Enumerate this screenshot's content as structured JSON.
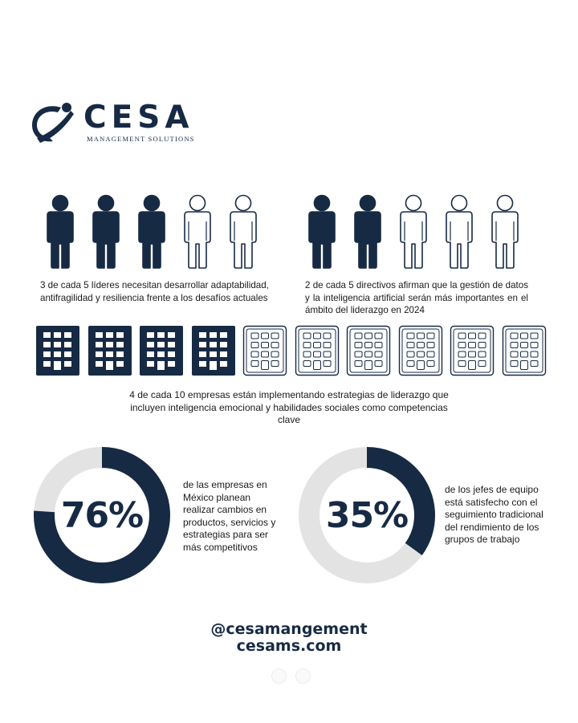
{
  "logo": {
    "name": "CESA",
    "tagline": "Management Solutions"
  },
  "stats": {
    "leaders": {
      "filled": 3,
      "total": 5,
      "text": "3 de cada 5 líderes necesitan desarrollar adaptabilidad, antifragilidad y resiliencia frente a los desafíos actuales"
    },
    "directors": {
      "filled": 2,
      "total": 5,
      "text": "2 de cada 5 directivos afirman que la gestión de datos y la inteligencia artificial serán más importantes en el ámbito del liderazgo en 2024"
    },
    "companies": {
      "filled": 4,
      "total": 10,
      "text": "4 de cada 10 empresas están implementando estrategias de liderazgo que incluyen inteligencia emocional y habilidades sociales como competencias clave"
    }
  },
  "donuts": [
    {
      "value": 76,
      "label": "76%",
      "text": "de las empresas en México planean realizar cambios en productos, servicios y estrategias para ser más competitivos"
    },
    {
      "value": 35,
      "label": "35%",
      "text": "de los jefes de equipo está satisfecho con el seguimiento tradicional del rendimiento de los grupos de trabajo"
    }
  ],
  "colors": {
    "accent": "#172a44",
    "track": "#e3e3e3"
  },
  "footer": {
    "handle": "@cesamangement",
    "site": "cesams.com"
  },
  "pagination": {
    "count": 2
  }
}
